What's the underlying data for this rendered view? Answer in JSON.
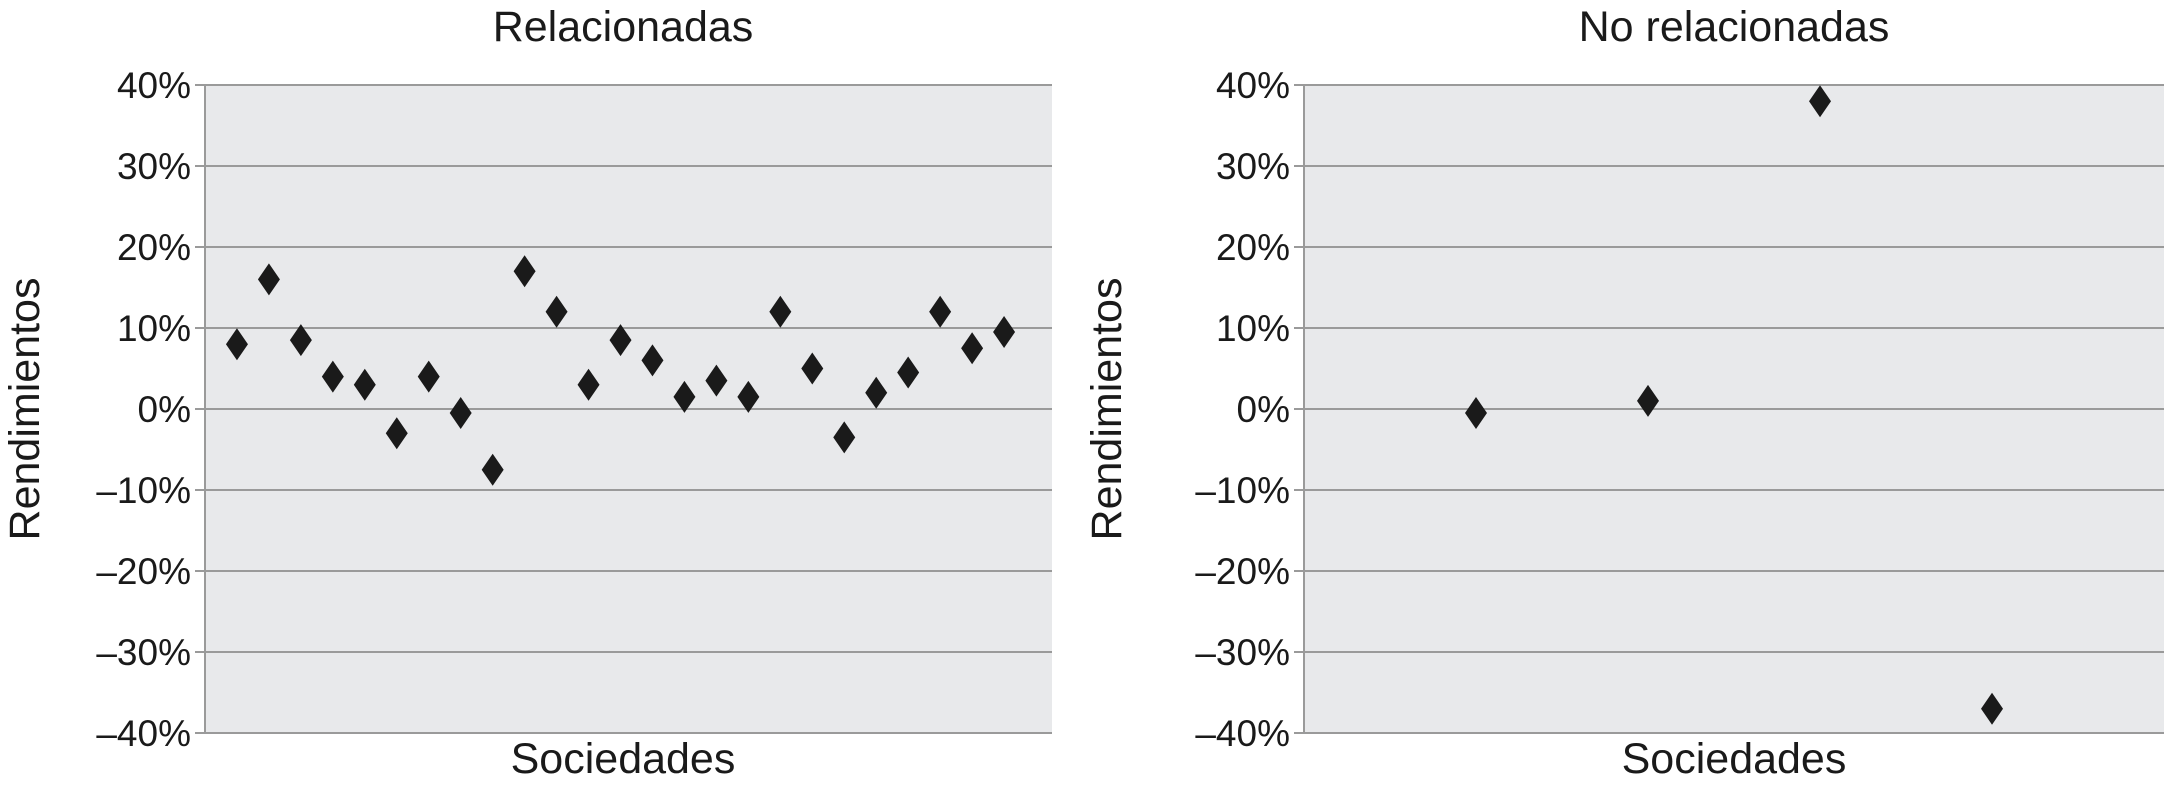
{
  "chart_data": [
    {
      "type": "scatter",
      "title": "Relacionadas",
      "xlabel": "Sociedades",
      "ylabel": "Rendimientos",
      "ylim": [
        -40,
        40
      ],
      "y_unit": "%",
      "y_ticks": [
        "40%",
        "30%",
        "20%",
        "10%",
        "0%",
        "–10%",
        "–20%",
        "–30%",
        "–40%"
      ],
      "grid": true,
      "background_color": "#e8e9eb",
      "grid_color": "#9a9a9a",
      "marker": "diamond",
      "marker_color": "#1a1a1a",
      "series": [
        {
          "x": [
            1,
            2,
            3,
            4,
            5,
            6,
            7,
            8,
            9,
            10,
            11,
            12,
            13,
            14,
            15,
            16,
            17,
            18,
            19,
            20,
            21,
            22,
            23,
            24,
            25,
            26
          ],
          "values": [
            8,
            16,
            8.5,
            4,
            3,
            -3,
            4,
            -0.5,
            -7.5,
            17,
            12,
            3,
            8.5,
            6,
            1.5,
            3.5,
            1.5,
            12,
            5,
            -3.5,
            2,
            4.5,
            12,
            7.5,
            9.5,
            null
          ]
        }
      ],
      "x_count": 26
    },
    {
      "type": "scatter",
      "title": "No relacionadas",
      "xlabel": "Sociedades",
      "ylabel": "Rendimientos",
      "ylim": [
        -40,
        40
      ],
      "y_unit": "%",
      "y_ticks": [
        "40%",
        "30%",
        "20%",
        "10%",
        "0%",
        "–10%",
        "–20%",
        "–30%",
        "–40%"
      ],
      "grid": true,
      "background_color": "#e8e9eb",
      "grid_color": "#9a9a9a",
      "marker": "diamond",
      "marker_color": "#1a1a1a",
      "series": [
        {
          "x": [
            1,
            2,
            3,
            4
          ],
          "values": [
            -0.5,
            1,
            38,
            -37
          ]
        }
      ],
      "x_count": 4
    }
  ]
}
